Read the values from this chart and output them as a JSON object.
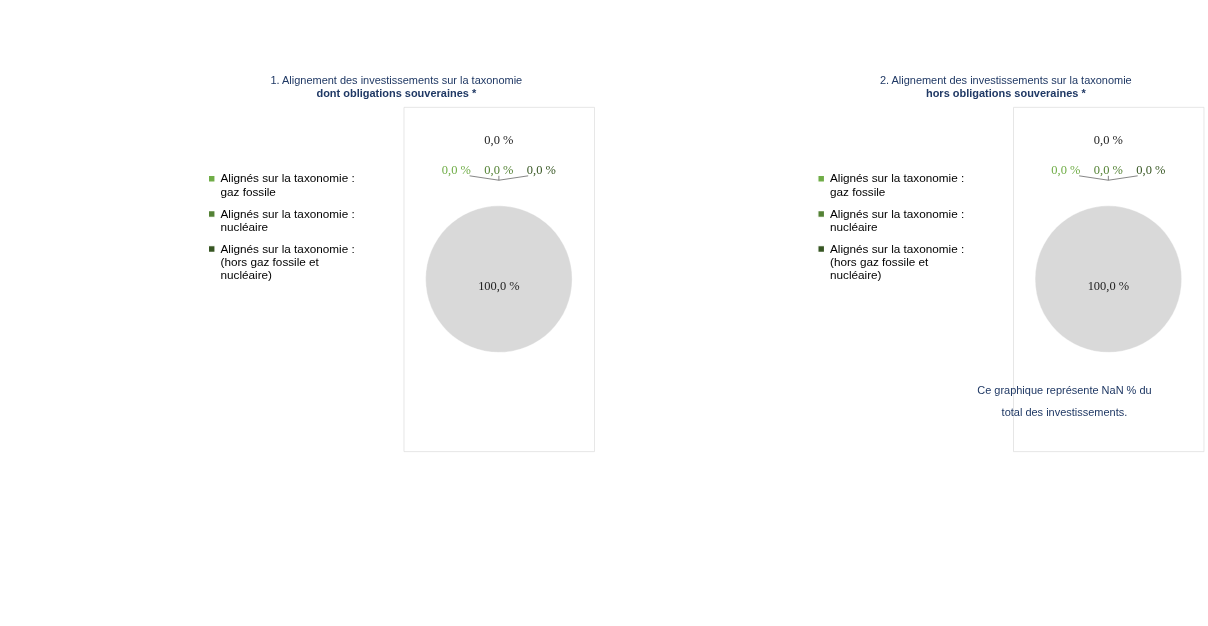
{
  "chart_data": [
    {
      "type": "pie",
      "title": "1. Alignement des investissements sur la taxonomie",
      "subtitle": "dont obligations souveraines *",
      "categories": [
        null,
        "Alignés sur la taxonomie : gaz fossile",
        "Alignés sur la taxonomie : nucléaire",
        "Alignés sur la taxonomie : (hors gaz fossile et nucléaire)",
        null
      ],
      "values": [
        0,
        0,
        0,
        0,
        100
      ],
      "colors": [
        "#d9d9d9",
        "#70ad47",
        "#548235",
        "#375623",
        "#d9d9d9"
      ],
      "value_labels": [
        "0,0 %",
        "0,0 %",
        "0,0 %",
        "0,0 %",
        "100,0 %"
      ],
      "legend": "left"
    },
    {
      "type": "pie",
      "title": "2. Alignement des investissements sur la taxonomie",
      "subtitle": "hors obligations souveraines *",
      "categories": [
        null,
        "Alignés sur la taxonomie : gaz fossile",
        "Alignés sur la taxonomie : nucléaire",
        "Alignés sur la taxonomie : (hors gaz fossile et nucléaire)",
        null
      ],
      "values": [
        0,
        0,
        0,
        0,
        100
      ],
      "colors": [
        "#d9d9d9",
        "#70ad47",
        "#548235",
        "#375623",
        "#d9d9d9"
      ],
      "value_labels": [
        "0,0 %",
        "0,0 %",
        "0,0 %",
        "0,0 %",
        "100,0 %"
      ],
      "legend": "left",
      "annotations": [
        "Ce graphique représente NaN % du total des investissements."
      ]
    }
  ]
}
